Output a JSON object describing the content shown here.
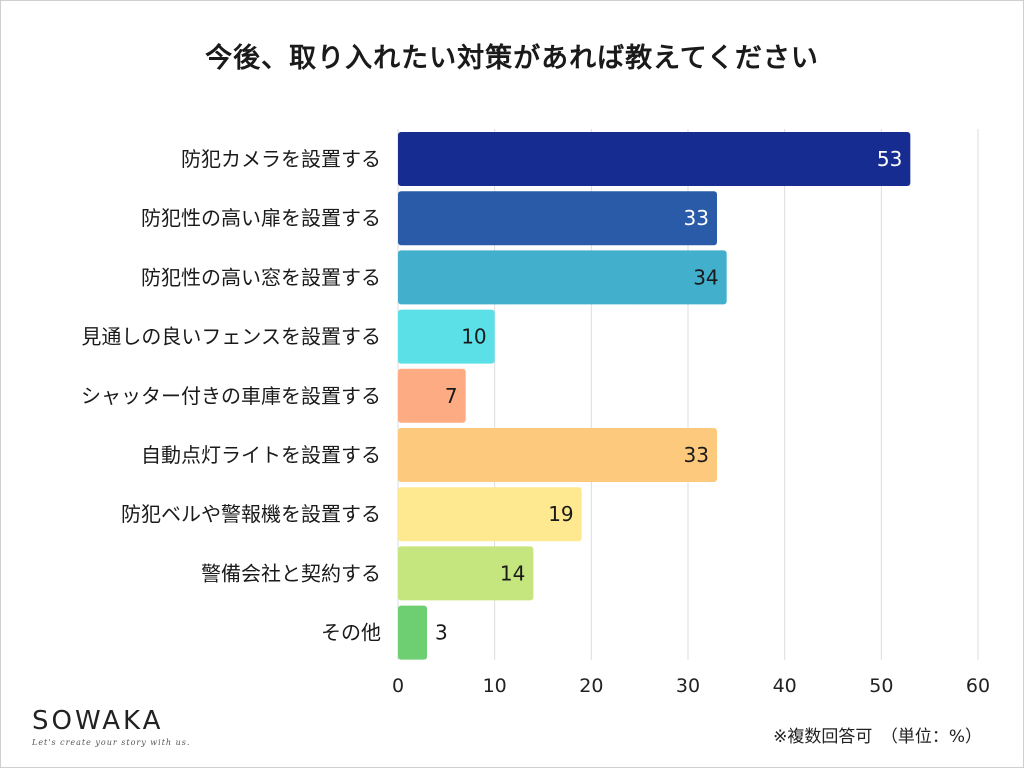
{
  "chart_data": {
    "type": "bar",
    "orientation": "horizontal",
    "title": "今後、取り入れたい対策があれば教えてください",
    "categories": [
      "防犯カメラを設置する",
      "防犯性の高い扉を設置する",
      "防犯性の高い窓を設置する",
      "見通しの良いフェンスを設置する",
      "シャッター付きの車庫を設置する",
      "自動点灯ライトを設置する",
      "防犯ベルや警報機を設置する",
      "警備会社と契約する",
      "その他"
    ],
    "values": [
      53,
      33,
      34,
      10,
      7,
      33,
      19,
      14,
      3
    ],
    "value_labels": [
      "53",
      "33",
      "34",
      "10",
      "7",
      "33",
      "19",
      "14",
      "3"
    ],
    "colors": [
      "#172c91",
      "#2a5ba8",
      "#42afcc",
      "#5ce0e8",
      "#fdab82",
      "#fdc97c",
      "#fee990",
      "#c5e67f",
      "#6dcf72"
    ],
    "label_colors": [
      "#ffffff",
      "#ffffff",
      "#1a1a1a",
      "#1a1a1a",
      "#1a1a1a",
      "#1a1a1a",
      "#1a1a1a",
      "#1a1a1a",
      "#1a1a1a"
    ],
    "xlim": [
      0,
      60
    ],
    "xticks": [
      0,
      10,
      20,
      30,
      40,
      50,
      60
    ],
    "xtick_labels": [
      "0",
      "10",
      "20",
      "30",
      "40",
      "50",
      "60"
    ],
    "grid": true
  },
  "brand": {
    "logo": "SOWAKA",
    "tagline": "Let's create your story with us."
  },
  "footnote": "※複数回答可　（単位：%）"
}
